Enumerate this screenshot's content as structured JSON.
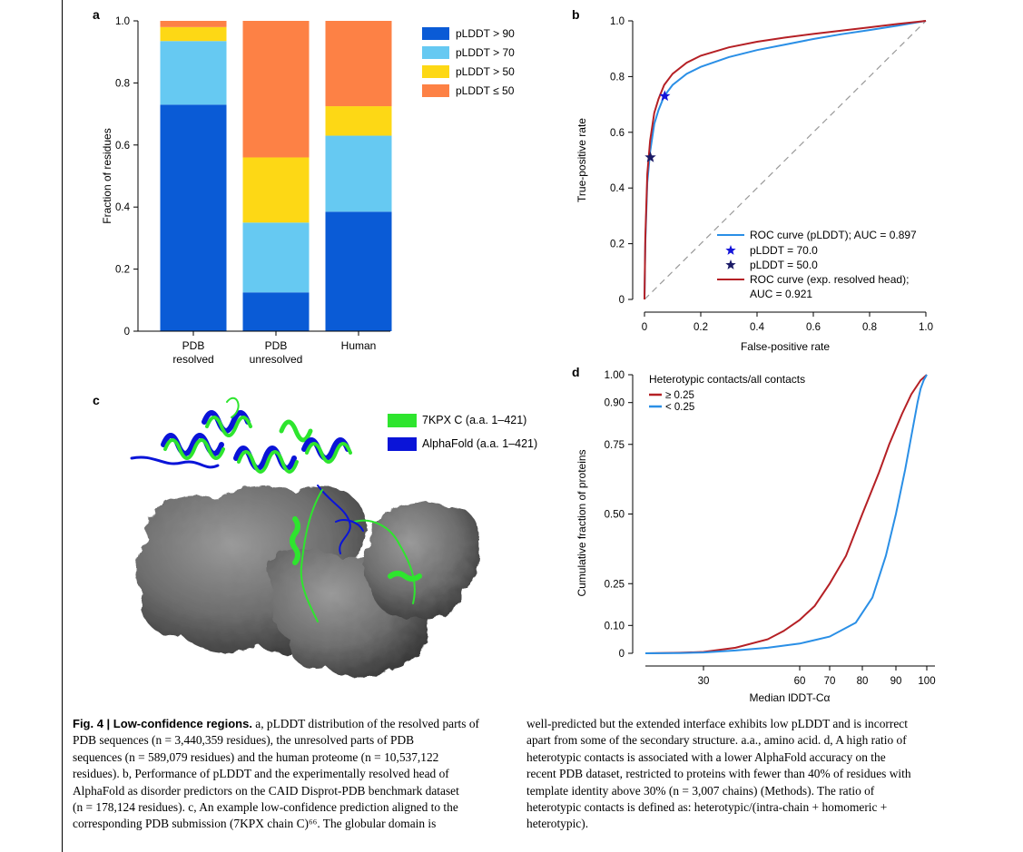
{
  "panels": {
    "a": {
      "letter": "a",
      "chart_data": {
        "type": "bar",
        "stacked": true,
        "ylabel": "Fraction of residues",
        "ylim": [
          0,
          1.0
        ],
        "yticks": [
          "0",
          "0.2",
          "0.4",
          "0.6",
          "0.8",
          "1.0"
        ],
        "categories": [
          [
            "PDB",
            "resolved"
          ],
          [
            "PDB",
            "unresolved"
          ],
          [
            "Human",
            ""
          ]
        ],
        "series": [
          {
            "name": "pLDDT > 90",
            "color": "#0a5bd6",
            "values": [
              0.73,
              0.125,
              0.385
            ]
          },
          {
            "name": "pLDDT > 70",
            "color": "#66c9f2",
            "values": [
              0.205,
              0.225,
              0.245
            ]
          },
          {
            "name": "pLDDT > 50",
            "color": "#fdd815",
            "values": [
              0.045,
              0.21,
              0.095
            ]
          },
          {
            "name": "pLDDT ≤ 50",
            "color": "#fd8145",
            "values": [
              0.02,
              0.44,
              0.275
            ]
          }
        ],
        "legend_position": "top-right"
      }
    },
    "b": {
      "letter": "b",
      "chart_data": {
        "type": "line",
        "xlabel": "False-positive rate",
        "ylabel": "True-positive rate",
        "xlim": [
          0,
          1.0
        ],
        "ylim": [
          0,
          1.0
        ],
        "xticks": [
          "0",
          "0.2",
          "0.4",
          "0.6",
          "0.8",
          "1.0"
        ],
        "yticks": [
          "0",
          "0.2",
          "0.4",
          "0.6",
          "0.8",
          "1.0"
        ],
        "diagonal": true,
        "series": [
          {
            "name": "ROC curve (pLDDT); AUC = 0.897",
            "color": "#2a8fe6",
            "x": [
              0,
              0.003,
              0.01,
              0.02,
              0.035,
              0.05,
              0.07,
              0.1,
              0.15,
              0.2,
              0.3,
              0.4,
              0.5,
              0.6,
              0.7,
              0.8,
              0.9,
              1.0
            ],
            "y": [
              0,
              0.2,
              0.42,
              0.53,
              0.63,
              0.68,
              0.73,
              0.77,
              0.81,
              0.835,
              0.87,
              0.895,
              0.915,
              0.935,
              0.952,
              0.967,
              0.983,
              1.0
            ]
          },
          {
            "name": "ROC curve (exp. resolved head); AUC = 0.921",
            "color": "#b52025",
            "x": [
              0,
              0.003,
              0.01,
              0.02,
              0.035,
              0.05,
              0.07,
              0.1,
              0.15,
              0.2,
              0.3,
              0.4,
              0.5,
              0.6,
              0.7,
              0.8,
              0.9,
              1.0
            ],
            "y": [
              0,
              0.22,
              0.45,
              0.57,
              0.67,
              0.72,
              0.77,
              0.81,
              0.85,
              0.875,
              0.905,
              0.925,
              0.94,
              0.953,
              0.965,
              0.977,
              0.989,
              1.0
            ]
          }
        ],
        "markers": [
          {
            "name": "pLDDT = 70.0",
            "x": 0.072,
            "y": 0.73,
            "color": "#1414d9"
          },
          {
            "name": "pLDDT = 50.0",
            "x": 0.021,
            "y": 0.51,
            "color": "#1a1a66"
          }
        ],
        "legend_lines": [
          "ROC curve (pLDDT); AUC = 0.897",
          "pLDDT = 70.0",
          "pLDDT = 50.0",
          "ROC curve (exp. resolved head);",
          "AUC = 0.921"
        ],
        "legend_position": "bottom-right"
      }
    },
    "c": {
      "letter": "c",
      "legend": [
        {
          "label": "7KPX C (a.a. 1–421)",
          "color": "#2ee52e"
        },
        {
          "label": "AlphaFold (a.a. 1–421)",
          "color": "#0a14d8"
        }
      ]
    },
    "d": {
      "letter": "d",
      "chart_data": {
        "type": "line",
        "xlabel": "Median lDDT-Cα",
        "ylabel": "Cumulative fraction of proteins",
        "xticks": [
          "30",
          "60",
          "70",
          "80",
          "90",
          "100"
        ],
        "xtick_values": [
          30,
          60,
          70,
          80,
          90,
          100
        ],
        "ylim": [
          0,
          1.0
        ],
        "yticks": [
          "0",
          "0.10",
          "0.25",
          "0.50",
          "0.75",
          "0.90",
          "1.00"
        ],
        "ytick_values": [
          0,
          0.1,
          0.25,
          0.5,
          0.75,
          0.9,
          1.0
        ],
        "legend_title": "Heterotypic contacts/all contacts",
        "series": [
          {
            "name": "≥ 0.25",
            "color": "#b52025",
            "x": [
              5,
              20,
              30,
              40,
              50,
              55,
              60,
              65,
              70,
              75,
              80,
              85,
              88,
              92,
              95,
              98,
              100
            ],
            "y": [
              0,
              0.002,
              0.005,
              0.02,
              0.05,
              0.08,
              0.12,
              0.17,
              0.25,
              0.35,
              0.5,
              0.65,
              0.75,
              0.86,
              0.93,
              0.98,
              1.0
            ]
          },
          {
            "name": "< 0.25",
            "color": "#2a8fe6",
            "x": [
              5,
              20,
              30,
              40,
              50,
              60,
              70,
              78,
              83,
              87,
              90,
              93,
              95,
              97,
              98,
              99,
              100
            ],
            "y": [
              0,
              0.001,
              0.003,
              0.01,
              0.02,
              0.035,
              0.06,
              0.11,
              0.2,
              0.35,
              0.5,
              0.66,
              0.78,
              0.9,
              0.95,
              0.98,
              1.0
            ]
          }
        ],
        "legend_position": "top-left"
      }
    }
  },
  "caption": {
    "fig_label": "Fig. 4 | Low-confidence regions.",
    "left_lines": [
      " a, pLDDT distribution of the resolved parts of",
      "PDB sequences (n = 3,440,359 residues), the unresolved parts of PDB",
      "sequences (n = 589,079 residues) and the human proteome (n = 10,537,122",
      "residues). b, Performance of pLDDT and the experimentally resolved head of",
      "AlphaFold as disorder predictors on the CAID Disprot-PDB benchmark dataset",
      "(n = 178,124 residues). c, An example low-confidence prediction aligned to the",
      "corresponding PDB submission (7KPX chain C)⁶⁶. The globular domain is"
    ],
    "right_lines": [
      "well-predicted but the extended interface exhibits low pLDDT and is incorrect",
      "apart from some of the secondary structure. a.a., amino acid. d, A high ratio of",
      "heterotypic contacts is associated with a lower AlphaFold accuracy on the",
      "recent PDB dataset, restricted to proteins with fewer than 40% of residues with",
      "template identity above 30% (n = 3,007 chains) (Methods). The ratio of",
      "heterotypic contacts is defined as: heterotypic/(intra-chain + homomeric +",
      "heterotypic)."
    ]
  }
}
